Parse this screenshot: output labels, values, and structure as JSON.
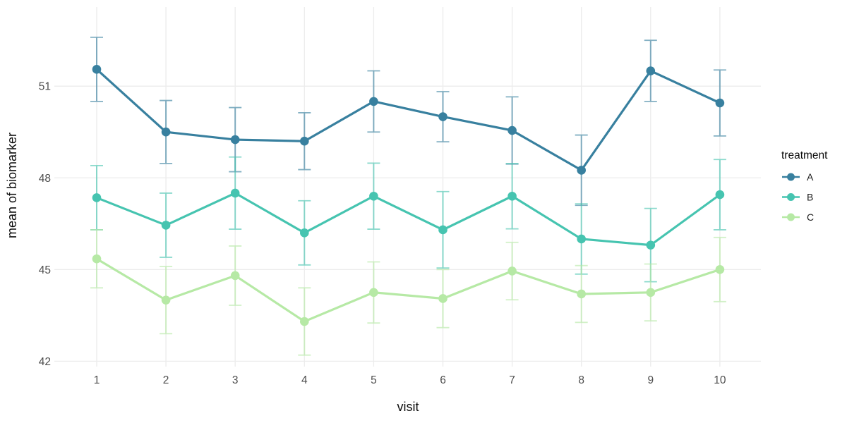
{
  "chart_data": {
    "type": "line",
    "title": "",
    "xlabel": "visit",
    "ylabel": "mean of biomarker",
    "x": [
      1,
      2,
      3,
      4,
      5,
      6,
      7,
      8,
      9,
      10
    ],
    "x_tick_labels": [
      "1",
      "2",
      "3",
      "4",
      "5",
      "6",
      "7",
      "8",
      "9",
      "10"
    ],
    "y_ticks": [
      42,
      45,
      48,
      51
    ],
    "y_tick_labels": [
      "42",
      "45",
      "48",
      "51"
    ],
    "ylim": [
      41.8,
      53.6
    ],
    "grid": true,
    "error_bars": true,
    "legend": {
      "title": "treatment",
      "position": "right",
      "entries": [
        "A",
        "B",
        "C"
      ]
    },
    "series": [
      {
        "name": "A",
        "color": "#38809f",
        "means": [
          51.55,
          49.5,
          49.25,
          49.2,
          50.5,
          50.0,
          49.55,
          48.25,
          51.5,
          50.45
        ],
        "errors": [
          1.05,
          1.03,
          1.05,
          0.93,
          1.0,
          0.82,
          1.1,
          1.15,
          1.0,
          1.08
        ]
      },
      {
        "name": "B",
        "color": "#46c4b0",
        "means": [
          47.35,
          46.45,
          47.5,
          46.2,
          47.4,
          46.3,
          47.4,
          46.0,
          45.8,
          47.45
        ],
        "errors": [
          1.05,
          1.05,
          1.18,
          1.05,
          1.08,
          1.25,
          1.07,
          1.15,
          1.2,
          1.15
        ]
      },
      {
        "name": "C",
        "color": "#b6e9a5",
        "means": [
          45.35,
          44.0,
          44.8,
          43.3,
          44.25,
          44.05,
          44.95,
          44.2,
          44.25,
          45.0
        ],
        "errors": [
          0.95,
          1.1,
          0.97,
          1.1,
          1.0,
          0.95,
          0.94,
          0.93,
          0.93,
          1.05
        ]
      }
    ]
  },
  "colors": {
    "background": "#ffffff",
    "gridline": "#ececec",
    "tick_text": "#4d4d4d",
    "title_text": "#0d0d0d"
  }
}
